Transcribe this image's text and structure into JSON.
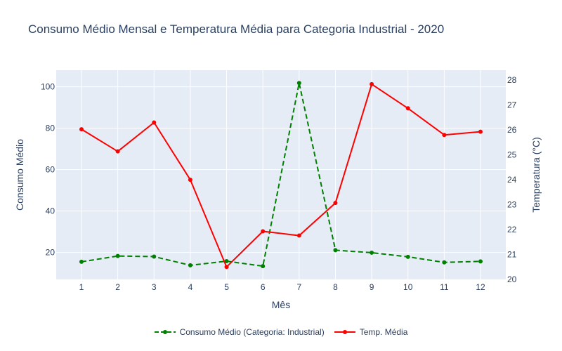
{
  "chart_data": {
    "type": "line",
    "title": "Consumo Médio Mensal e Temperatura Média para Categoria Industrial - 2020",
    "xlabel": "Mês",
    "ylabel": "Consumo Médio",
    "y2label": "Temperatura (°C)",
    "x": [
      1,
      2,
      3,
      4,
      5,
      6,
      7,
      8,
      9,
      10,
      11,
      12
    ],
    "ylim": [
      7,
      108
    ],
    "y_ticks": [
      20,
      40,
      60,
      80,
      100
    ],
    "y2lim": [
      20,
      28.4
    ],
    "y2_ticks": [
      20,
      21,
      22,
      23,
      24,
      25,
      26,
      27,
      28
    ],
    "grid": true,
    "legend_position": "bottom-center",
    "background": "#E5ECF6",
    "series": [
      {
        "name": "Consumo Médio (Categoria: Industrial)",
        "axis": "left",
        "color": "#008000",
        "dash": "dashed",
        "values": [
          15.5,
          18.3,
          18.0,
          13.8,
          15.8,
          13.4,
          101.8,
          21.1,
          19.9,
          17.9,
          15.2,
          15.7
        ]
      },
      {
        "name": "Temp. Média",
        "axis": "right",
        "color": "#ff0000",
        "dash": "solid",
        "values": [
          26.03,
          25.14,
          26.3,
          24.0,
          20.5,
          21.93,
          21.76,
          23.07,
          27.84,
          26.87,
          25.8,
          25.93
        ]
      }
    ]
  }
}
